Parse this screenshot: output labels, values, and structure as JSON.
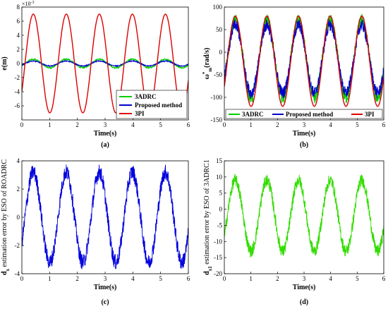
{
  "chart_data": [
    {
      "panel": "(a)",
      "type": "line",
      "xlabel": "Time(s)",
      "ylabel": "e(m)",
      "exponent": "×10",
      "exponent_power": "-3",
      "xlim": [
        0,
        6
      ],
      "ylim": [
        -8,
        8
      ],
      "xticks": [
        "0",
        "1",
        "2",
        "3",
        "4",
        "5",
        "6"
      ],
      "yticks": [
        "-6",
        "-4",
        "-2",
        "0",
        "2",
        "4",
        "6",
        "8"
      ],
      "grid": false,
      "legend_position": "bottom-right",
      "series": [
        {
          "name": "3ADRC",
          "color": "#00cc00",
          "amplitude": 0.6,
          "frequency_hz": 0.84,
          "noise": true
        },
        {
          "name": "Proposed method",
          "color": "#0000cc",
          "amplitude": 0.35,
          "frequency_hz": 0.84,
          "noise": true
        },
        {
          "name": "3PI",
          "color": "#dd0000",
          "amplitude": 7.0,
          "frequency_hz": 0.84,
          "noise": false
        }
      ],
      "caption": "(a)"
    },
    {
      "panel": "(b)",
      "type": "line",
      "xlabel": "Time(s)",
      "ylabel": "ω",
      "ylabel_sup": "*",
      "ylabel_sub": "m",
      "ylabel_unit": "(rad/s)",
      "xlim": [
        0,
        6
      ],
      "ylim": [
        -150,
        100
      ],
      "xticks": [
        "0",
        "1",
        "2",
        "3",
        "4",
        "5",
        "6"
      ],
      "yticks": [
        "-150",
        "-100",
        "-50",
        "0",
        "50",
        "100"
      ],
      "grid": false,
      "legend_position": "bottom",
      "series": [
        {
          "name": "3ADRC",
          "color": "#00cc00",
          "amplitude": 85,
          "frequency_hz": 0.84,
          "offset": -15,
          "noise": true
        },
        {
          "name": "Proposed method",
          "color": "#0000cc",
          "amplitude": 75,
          "frequency_hz": 0.84,
          "offset": -15,
          "noise": true
        },
        {
          "name": "3PI",
          "color": "#dd0000",
          "amplitude": 100,
          "frequency_hz": 0.84,
          "offset": -20,
          "noise": false
        }
      ],
      "caption": "(b)"
    },
    {
      "panel": "(c)",
      "type": "line",
      "xlabel": "Time(s)",
      "ylabel": "d",
      "ylabel_sub": "x",
      "ylabel_rest": " estimation error by ESO of ROADRC",
      "xlim": [
        0,
        6
      ],
      "ylim": [
        -4,
        4
      ],
      "xticks": [
        "0",
        "1",
        "2",
        "3",
        "4",
        "5",
        "6"
      ],
      "yticks": [
        "-4",
        "-2",
        "0",
        "2",
        "4"
      ],
      "grid": false,
      "series": [
        {
          "name": "",
          "color": "#0000dd",
          "amplitude": 3.2,
          "frequency_hz": 0.84,
          "noise": true
        }
      ],
      "caption": "(c)"
    },
    {
      "panel": "(d)",
      "type": "line",
      "xlabel": "Time(s)",
      "ylabel": "d",
      "ylabel_sub": "x1",
      "ylabel_rest": " estimation error by ESO of  3ADRC1",
      "xlim": [
        0,
        6
      ],
      "ylim": [
        -20,
        15
      ],
      "xticks": [
        "0",
        "1",
        "2",
        "3",
        "4",
        "5",
        "6"
      ],
      "yticks": [
        "-20",
        "-15",
        "-10",
        "-5",
        "0",
        "5",
        "10",
        "15"
      ],
      "grid": false,
      "series": [
        {
          "name": "",
          "color": "#33dd00",
          "amplitude": 11,
          "frequency_hz": 0.84,
          "offset": -2,
          "noise": true
        }
      ],
      "caption": "(d)"
    }
  ]
}
